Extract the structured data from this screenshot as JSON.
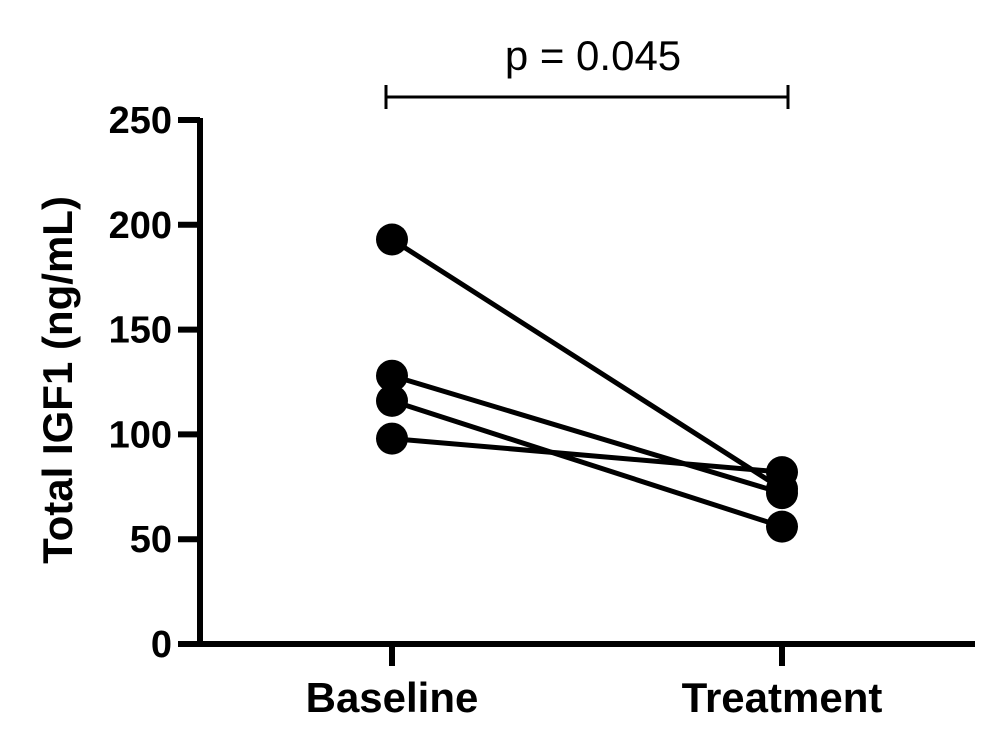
{
  "chart_data": {
    "type": "line",
    "ylabel": "Total IGF1 (ng/mL)",
    "xlabel": "",
    "categories": [
      "Baseline",
      "Treatment"
    ],
    "ylim": [
      0,
      250
    ],
    "yticks": [
      0,
      50,
      100,
      150,
      200,
      250
    ],
    "series": [
      {
        "values": [
          193,
          74
        ]
      },
      {
        "values": [
          128,
          72
        ]
      },
      {
        "values": [
          116,
          56
        ]
      },
      {
        "values": [
          98,
          82
        ]
      }
    ],
    "annotation": {
      "text": "p = 0.045",
      "type": "bracket",
      "from": "Baseline",
      "to": "Treatment"
    },
    "grid": false,
    "legend": "none",
    "colors": {
      "marker": "#000000",
      "line": "#000000"
    }
  }
}
